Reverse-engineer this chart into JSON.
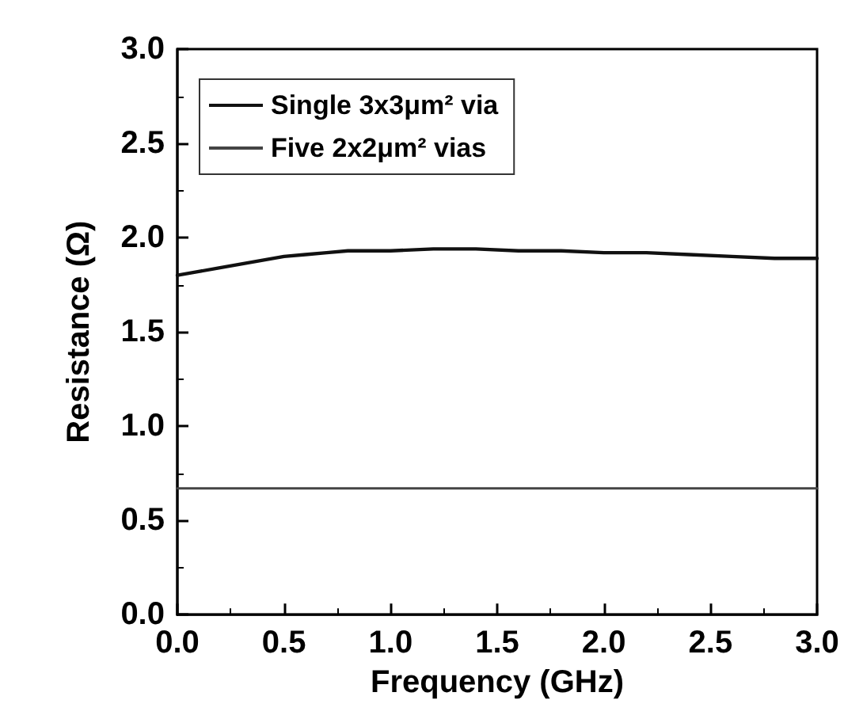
{
  "chart_data": {
    "type": "line",
    "xlabel": "Frequency (GHz)",
    "ylabel": "Resistance (Ω)",
    "x": [
      0,
      0.1,
      0.2,
      0.3,
      0.4,
      0.5,
      0.6,
      0.7,
      0.8,
      0.9,
      1.0,
      1.2,
      1.4,
      1.6,
      1.8,
      2.0,
      2.2,
      2.4,
      2.6,
      2.8,
      3.0
    ],
    "series": [
      {
        "name": "Single 3x3μm² via",
        "color": "#111111",
        "values": [
          1.8,
          1.82,
          1.84,
          1.86,
          1.88,
          1.9,
          1.91,
          1.92,
          1.93,
          1.93,
          1.93,
          1.94,
          1.94,
          1.93,
          1.93,
          1.92,
          1.92,
          1.91,
          1.9,
          1.89,
          1.89
        ]
      },
      {
        "name": "Five 2x2μm² vias",
        "color": "#444444",
        "values": [
          0.67,
          0.67,
          0.67,
          0.67,
          0.67,
          0.67,
          0.67,
          0.67,
          0.67,
          0.67,
          0.67,
          0.67,
          0.67,
          0.67,
          0.67,
          0.67,
          0.67,
          0.67,
          0.67,
          0.67,
          0.67
        ]
      }
    ],
    "xlim": [
      0,
      3
    ],
    "xticks": [
      {
        "value": 0,
        "label": "0.0"
      },
      0.5,
      {
        "value": 1,
        "label": "1.0"
      },
      1.5,
      {
        "value": 2,
        "label": "2.0"
      },
      2.5,
      {
        "value": 3,
        "label": "3.0"
      }
    ],
    "ylim": [
      0,
      3
    ],
    "yticks": [
      {
        "value": 0,
        "label": "0.0"
      },
      0.5,
      {
        "value": 1,
        "label": "1.0"
      },
      1.5,
      {
        "value": 2,
        "label": "2.0"
      },
      2.5,
      {
        "value": 3,
        "label": "3.0"
      }
    ],
    "legend": "top left",
    "grid": false,
    "marker": "none",
    "line_style": "solid"
  }
}
